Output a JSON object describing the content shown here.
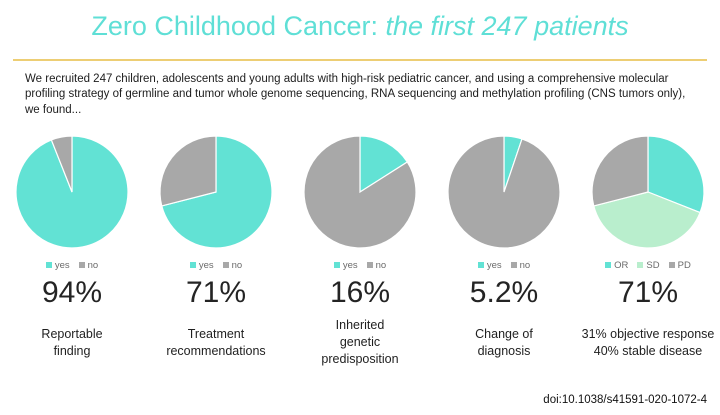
{
  "slide": {
    "title_regular": "Zero Childhood Cancer: ",
    "title_italic": "the first 247 patients",
    "intro": "We recruited 247 children, adolescents and young adults with high-risk pediatric cancer, and using a comprehensive molecular profiling strategy of germline and tumor whole genome sequencing, RNA sequencing and methylation profiling (CNS tumors only), we found...",
    "doi": "doi:10.1038/s41591-020-1072-4"
  },
  "colors": {
    "title_teal": "#5FDFD6",
    "divider_gold": "#EDCE74",
    "pie_teal": "#62E2D4",
    "pie_gray": "#A8A8A8",
    "pie_mint": "#B9EECD"
  },
  "chart_data": [
    {
      "type": "pie",
      "categories": [
        "yes",
        "no"
      ],
      "values": [
        94,
        6
      ],
      "colors": [
        "#62E2D4",
        "#A8A8A8"
      ],
      "legend_position": "bottom",
      "stat": "94%",
      "caption": "Reportable\nfinding"
    },
    {
      "type": "pie",
      "categories": [
        "yes",
        "no"
      ],
      "values": [
        71,
        29
      ],
      "colors": [
        "#62E2D4",
        "#A8A8A8"
      ],
      "legend_position": "bottom",
      "stat": "71%",
      "caption": "Treatment\nrecommendations"
    },
    {
      "type": "pie",
      "categories": [
        "yes",
        "no"
      ],
      "values": [
        16,
        84
      ],
      "colors": [
        "#62E2D4",
        "#A8A8A8"
      ],
      "legend_position": "bottom",
      "stat": "16%",
      "caption": "Inherited\ngenetic\npredisposition"
    },
    {
      "type": "pie",
      "categories": [
        "yes",
        "no"
      ],
      "values": [
        5.2,
        94.8
      ],
      "colors": [
        "#62E2D4",
        "#A8A8A8"
      ],
      "legend_position": "bottom",
      "stat": "5.2%",
      "caption": "Change of\ndiagnosis"
    },
    {
      "type": "pie",
      "categories": [
        "OR",
        "SD",
        "PD"
      ],
      "values": [
        31,
        40,
        29
      ],
      "colors": [
        "#62E2D4",
        "#B9EECD",
        "#A8A8A8"
      ],
      "legend_position": "bottom",
      "stat": "71%",
      "caption": "31% objective response\n40% stable disease"
    }
  ]
}
